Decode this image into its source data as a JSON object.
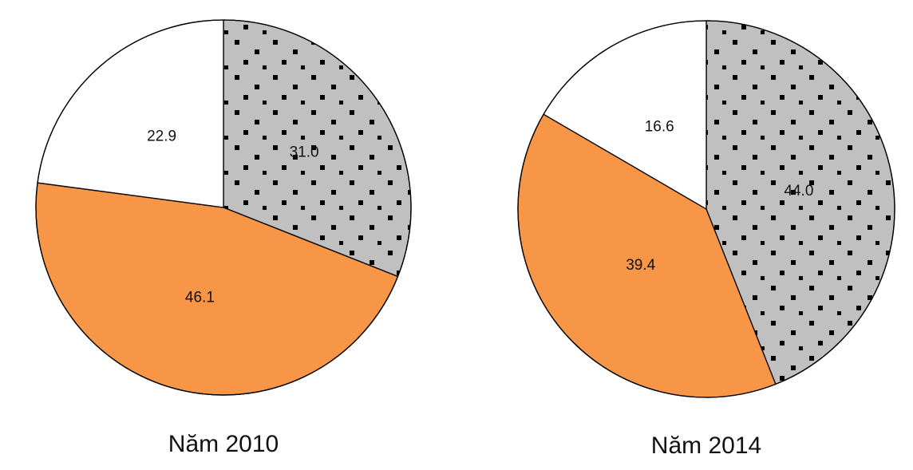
{
  "chart_data": [
    {
      "type": "pie",
      "title": "Năm 2010",
      "slices": [
        {
          "value": 31.0,
          "label": "31.0",
          "color": "#c0c0c0",
          "pattern": "dots"
        },
        {
          "value": 46.1,
          "label": "46.1",
          "color": "#f79646",
          "pattern": "none"
        },
        {
          "value": 22.9,
          "label": "22.9",
          "color": "#ffffff",
          "pattern": "none"
        }
      ]
    },
    {
      "type": "pie",
      "title": "Năm 2014",
      "slices": [
        {
          "value": 44.0,
          "label": "44.0",
          "color": "#c0c0c0",
          "pattern": "dots"
        },
        {
          "value": 39.4,
          "label": "39.4",
          "color": "#f79646",
          "pattern": "none"
        },
        {
          "value": 16.6,
          "label": "16.6",
          "color": "#ffffff",
          "pattern": "none"
        }
      ]
    }
  ]
}
